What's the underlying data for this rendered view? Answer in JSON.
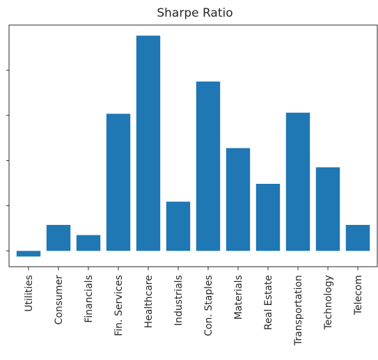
{
  "chart_data": {
    "type": "bar",
    "title": "Sharpe Ratio",
    "xlabel": "",
    "ylabel": "",
    "categories": [
      "Utilities",
      "Consumer",
      "Financials",
      "Fin. Services",
      "Healthcare",
      "Industrials",
      "Con. Staples",
      "Materials",
      "Real Estate",
      "Transportation",
      "Technology",
      "Telecom"
    ],
    "values": [
      -0.025,
      0.115,
      0.07,
      0.607,
      0.953,
      0.218,
      0.75,
      0.455,
      0.297,
      0.612,
      0.37,
      0.115
    ],
    "ylim": [
      -0.07,
      1.0
    ],
    "y_tick_values": [
      0.0,
      0.2,
      0.4,
      0.6,
      0.8
    ],
    "y_tick_labels_visible": false,
    "grid": false,
    "legend": "none",
    "bar_color": "#1f77b4",
    "axis_color": "#262626"
  }
}
